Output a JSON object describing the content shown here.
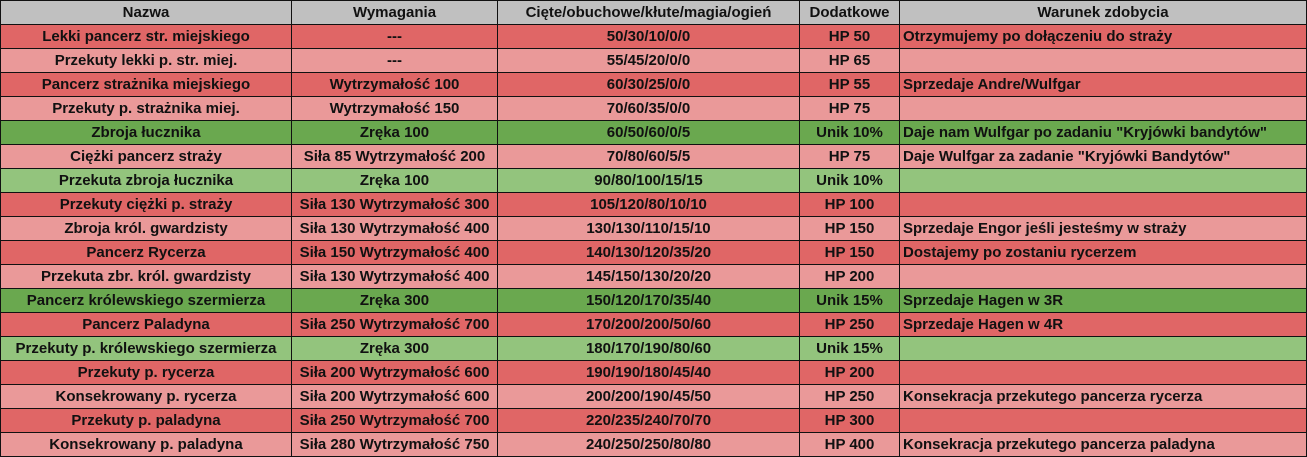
{
  "headers": [
    "Nazwa",
    "Wymagania",
    "Cięte/obuchowe/kłute/magia/ogień",
    "Dodatkowe",
    "Warunek zdobycia"
  ],
  "colors": {
    "red": "#e06666",
    "pink": "#ea9999",
    "green_dark": "#6aa84f",
    "green_light": "#93c47d"
  },
  "rows": [
    {
      "cells": [
        "Lekki pancerz str. miejskiego",
        "---",
        "50/30/10/0/0",
        "HP 50",
        "Otrzymujemy po dołączeniu do straży"
      ],
      "color": "red"
    },
    {
      "cells": [
        "Przekuty lekki p. str. miej.",
        "---",
        "55/45/20/0/0",
        "HP 65",
        ""
      ],
      "color": "pink"
    },
    {
      "cells": [
        "Pancerz strażnika miejskiego",
        "Wytrzymałość 100",
        "60/30/25/0/0",
        "HP 55",
        "Sprzedaje Andre/Wulfgar"
      ],
      "color": "red"
    },
    {
      "cells": [
        "Przekuty p. strażnika miej.",
        "Wytrzymałość 150",
        "70/60/35/0/0",
        "HP 75",
        ""
      ],
      "color": "pink"
    },
    {
      "cells": [
        "Zbroja łucznika",
        "Zręka 100",
        "60/50/60/0/5",
        "Unik 10%",
        "Daje nam Wulfgar po zadaniu \"Kryjówki bandytów\""
      ],
      "color": "green_dark"
    },
    {
      "cells": [
        "Ciężki pancerz straży",
        "Siła 85 Wytrzymałość 200",
        "70/80/60/5/5",
        "HP 75",
        "Daje Wulfgar za zadanie \"Kryjówki Bandytów\""
      ],
      "color": "pink"
    },
    {
      "cells": [
        "Przekuta zbroja łucznika",
        "Zręka 100",
        "90/80/100/15/15",
        "Unik 10%",
        ""
      ],
      "color": "green_light"
    },
    {
      "cells": [
        "Przekuty ciężki p. straży",
        "Siła 130 Wytrzymałość 300",
        "105/120/80/10/10",
        "HP 100",
        ""
      ],
      "color": "red"
    },
    {
      "cells": [
        "Zbroja król. gwardzisty",
        "Siła 130 Wytrzymałość 400",
        "130/130/110/15/10",
        "HP 150",
        "Sprzedaje Engor jeśli jesteśmy w straży"
      ],
      "color": "pink"
    },
    {
      "cells": [
        "Pancerz Rycerza",
        "Siła 150 Wytrzymałość 400",
        "140/130/120/35/20",
        "HP 150",
        "Dostajemy po zostaniu rycerzem"
      ],
      "color": "red"
    },
    {
      "cells": [
        "Przekuta zbr. król. gwardzisty",
        "Siła 130 Wytrzymałość 400",
        "145/150/130/20/20",
        "HP 200",
        ""
      ],
      "color": "pink"
    },
    {
      "cells": [
        "Pancerz królewskiego szermierza",
        "Zręka 300",
        "150/120/170/35/40",
        "Unik 15%",
        "Sprzedaje Hagen w 3R"
      ],
      "color": "green_dark"
    },
    {
      "cells": [
        "Pancerz Paladyna",
        "Siła 250 Wytrzymałość 700",
        "170/200/200/50/60",
        "HP 250",
        "Sprzedaje Hagen w 4R"
      ],
      "color": "red"
    },
    {
      "cells": [
        "Przekuty p. królewskiego szermierza",
        "Zręka 300",
        "180/170/190/80/60",
        "Unik 15%",
        ""
      ],
      "color": "green_light"
    },
    {
      "cells": [
        "Przekuty p. rycerza",
        "Siła 200 Wytrzymałość 600",
        "190/190/180/45/40",
        "HP 200",
        ""
      ],
      "color": "red"
    },
    {
      "cells": [
        "Konsekrowany p. rycerza",
        "Siła 200 Wytrzymałość 600",
        "200/200/190/45/50",
        "HP 250",
        "Konsekracja przekutego pancerza rycerza"
      ],
      "color": "pink"
    },
    {
      "cells": [
        "Przekuty p. paladyna",
        "Siła 250 Wytrzymałość 700",
        "220/235/240/70/70",
        "HP 300",
        ""
      ],
      "color": "red"
    },
    {
      "cells": [
        "Konsekrowany p. paladyna",
        "Siła 280 Wytrzymałość 750",
        "240/250/250/80/80",
        "HP 400",
        "Konsekracja przekutego pancerza paladyna"
      ],
      "color": "pink"
    }
  ]
}
